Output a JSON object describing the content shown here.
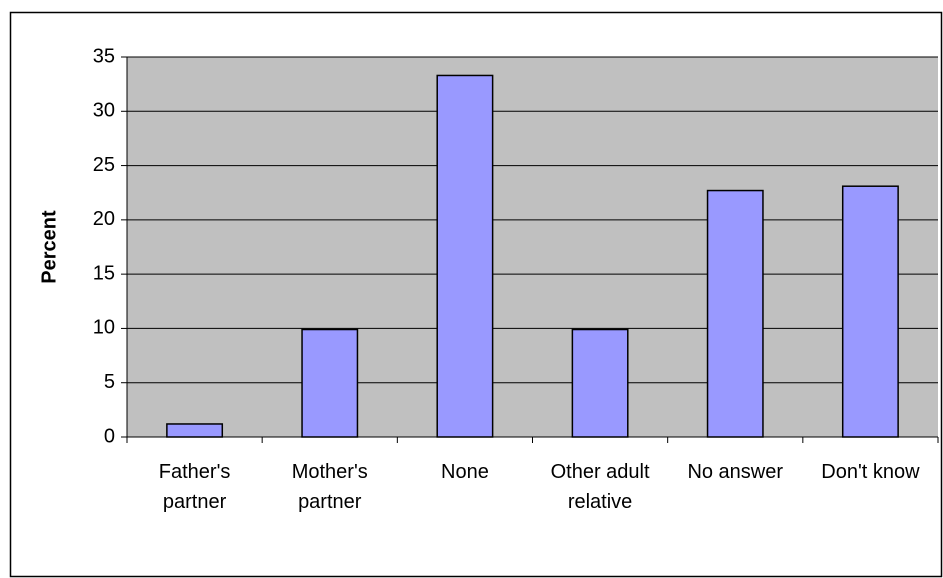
{
  "chart_data": {
    "type": "bar",
    "y_label": "Percent",
    "categories": [
      "Father's partner",
      "Mother's partner",
      "None",
      "Other adult relative",
      "No answer",
      "Don't know"
    ],
    "values": [
      1.2,
      9.9,
      33.3,
      9.9,
      22.7,
      23.1
    ],
    "color": "#9999ff",
    "ylim": [
      0,
      35
    ],
    "yticks": [
      0,
      5,
      10,
      15,
      20,
      25,
      30,
      35
    ],
    "grid": true
  }
}
